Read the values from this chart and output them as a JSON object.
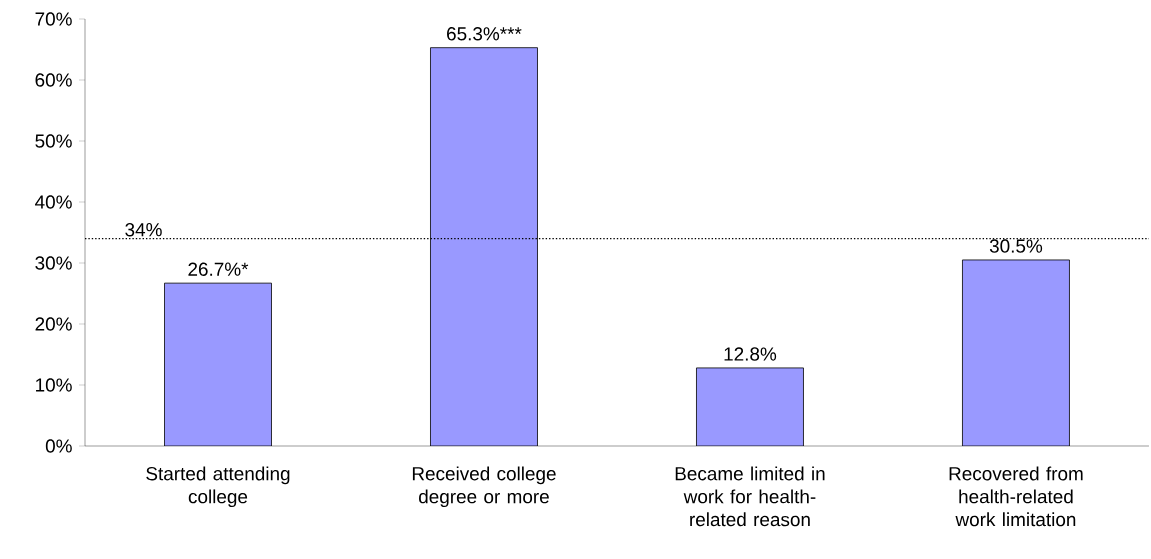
{
  "chart_data": {
    "type": "bar",
    "categories": [
      "Started attending college",
      "Received college degree or more",
      "Became limited in work for health-related reason",
      "Recovered from health-related work limitation"
    ],
    "values": [
      26.7,
      65.3,
      12.8,
      30.5
    ],
    "value_labels": [
      "26.7%*",
      "65.3%***",
      "12.8%",
      "30.5%"
    ],
    "color": "#9999ff",
    "ylim": [
      0,
      70
    ],
    "yticks": [
      {
        "value": 0,
        "label": "0%"
      },
      {
        "value": 10,
        "label": "10%"
      },
      {
        "value": 20,
        "label": "20%"
      },
      {
        "value": 30,
        "label": "30%"
      },
      {
        "value": 40,
        "label": "40%"
      },
      {
        "value": 50,
        "label": "50%"
      },
      {
        "value": 60,
        "label": "60%"
      },
      {
        "value": 70,
        "label": "70%"
      }
    ],
    "ref_lines": [
      {
        "axis": "y",
        "value": 34,
        "label": "34%",
        "line_style": "dotted",
        "color": "#000000"
      }
    ],
    "grid": false
  }
}
